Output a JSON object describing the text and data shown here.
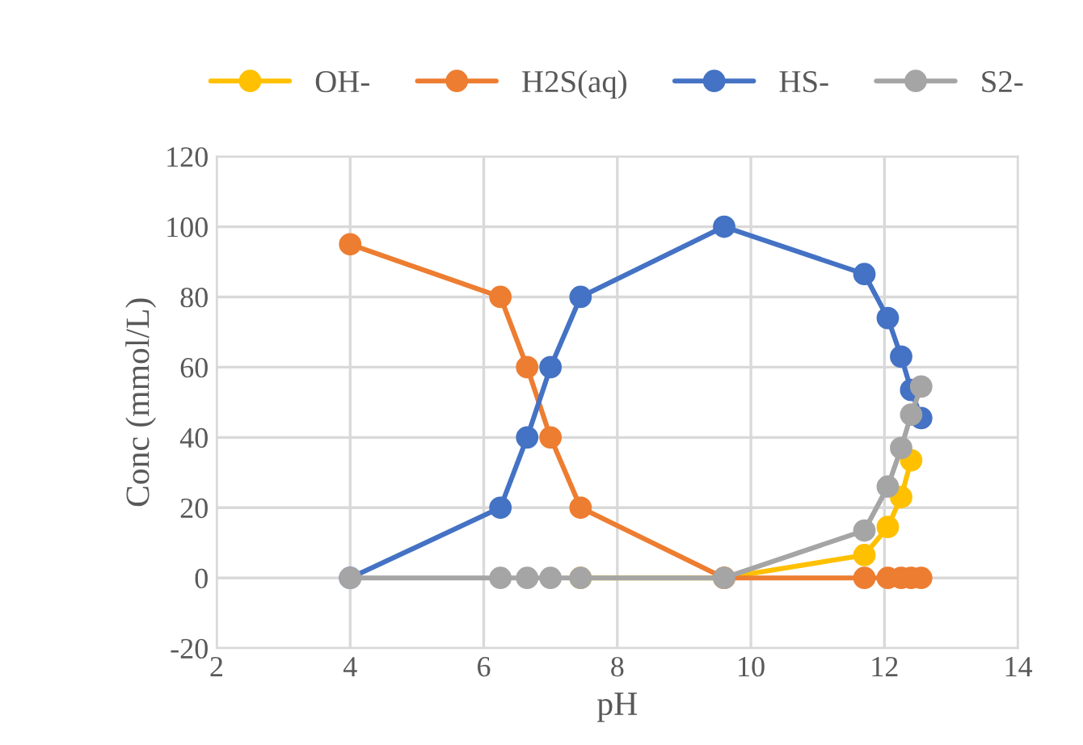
{
  "chart_data": {
    "type": "line",
    "xlabel": "pH",
    "ylabel": "Conc (mmol/L)",
    "x": [
      4,
      6.25,
      6.65,
      7,
      7.45,
      9.6,
      11.7,
      12.05,
      12.25,
      12.4,
      12.55
    ],
    "series": [
      {
        "name": "OH-",
        "color": "#ffc000",
        "values": [
          null,
          null,
          null,
          null,
          0,
          0,
          6.5,
          14.5,
          23,
          33.5,
          null
        ]
      },
      {
        "name": "H2S(aq)",
        "color": "#ed7d31",
        "values": [
          95,
          80,
          60,
          40,
          20,
          0,
          0,
          0,
          0,
          0,
          0
        ]
      },
      {
        "name": "HS-",
        "color": "#4472c4",
        "values": [
          0,
          20,
          40,
          60,
          80,
          100,
          86.5,
          74,
          63,
          53.5,
          45.5
        ]
      },
      {
        "name": "S2-",
        "color": "#a5a5a5",
        "values": [
          0,
          0,
          0,
          0,
          0,
          0,
          13.5,
          26,
          37,
          46.5,
          54.5
        ]
      }
    ],
    "xlim": [
      2,
      14
    ],
    "xticks": [
      2,
      4,
      6,
      8,
      10,
      12,
      14
    ],
    "ylim": [
      -20,
      120
    ],
    "yticks": [
      -20,
      0,
      20,
      40,
      60,
      80,
      100,
      120
    ],
    "grid": true,
    "legend": "top",
    "marker": "circle",
    "line_style": "solid"
  }
}
